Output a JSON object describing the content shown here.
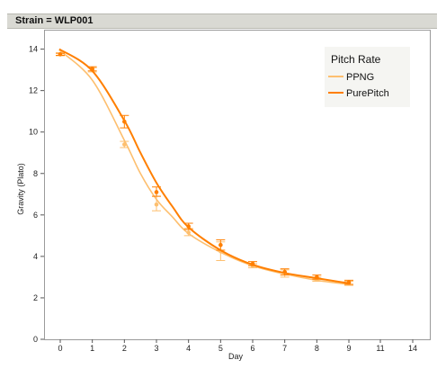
{
  "panel": {
    "strip_label": "Strain = WLP001"
  },
  "chart_data": {
    "type": "line",
    "title": "",
    "xlabel": "Day",
    "ylabel": "Gravity (Plato)",
    "xlim": [
      -0.8,
      14.6
    ],
    "ylim": [
      0,
      14.7
    ],
    "x_ticks": [
      0,
      1,
      2,
      3,
      4,
      5,
      6,
      7,
      8,
      9,
      11,
      14
    ],
    "y_ticks": [
      0,
      2,
      4,
      6,
      8,
      10,
      12,
      14
    ],
    "x_axis_note": "axis is non-linear after day 9 (ticks 11 and 14 evenly spaced)",
    "grid": false,
    "legend": {
      "title": "Pitch Rate",
      "position": "top-right"
    },
    "series": [
      {
        "name": "PPNG",
        "color": "#fdbf6f",
        "points": [
          {
            "x": 0,
            "y": 13.75,
            "lo": 13.68,
            "hi": 13.82
          },
          {
            "x": 1,
            "y": 13.0,
            "lo": 12.9,
            "hi": 13.1
          },
          {
            "x": 2,
            "y": 9.4,
            "lo": 9.25,
            "hi": 9.55
          },
          {
            "x": 3,
            "y": 6.5,
            "lo": 6.2,
            "hi": 6.9
          },
          {
            "x": 4,
            "y": 5.15,
            "lo": 5.0,
            "hi": 5.35
          },
          {
            "x": 5,
            "y": 4.25,
            "lo": 3.8,
            "hi": 4.7
          },
          {
            "x": 6,
            "y": 3.55,
            "lo": 3.45,
            "hi": 3.65
          },
          {
            "x": 7,
            "y": 3.2,
            "lo": 3.0,
            "hi": 3.35
          },
          {
            "x": 8,
            "y": 2.9,
            "lo": 2.8,
            "hi": 3.0
          },
          {
            "x": 9,
            "y": 2.7,
            "lo": 2.6,
            "hi": 2.8
          }
        ],
        "fit": [
          [
            -0.05,
            13.95
          ],
          [
            1,
            12.5
          ],
          [
            2,
            9.6
          ],
          [
            2.5,
            8.0
          ],
          [
            3,
            6.75
          ],
          [
            3.5,
            5.9
          ],
          [
            4,
            5.1
          ],
          [
            5,
            4.2
          ],
          [
            6,
            3.55
          ],
          [
            7,
            3.15
          ],
          [
            8,
            2.85
          ],
          [
            9,
            2.65
          ]
        ]
      },
      {
        "name": "PurePitch",
        "color": "#ff7f00",
        "points": [
          {
            "x": 0,
            "y": 13.75,
            "lo": 13.7,
            "hi": 13.8
          },
          {
            "x": 1,
            "y": 13.05,
            "lo": 12.95,
            "hi": 13.15
          },
          {
            "x": 2,
            "y": 10.5,
            "lo": 10.2,
            "hi": 10.8
          },
          {
            "x": 3,
            "y": 7.1,
            "lo": 6.9,
            "hi": 7.35
          },
          {
            "x": 4,
            "y": 5.45,
            "lo": 5.3,
            "hi": 5.6
          },
          {
            "x": 5,
            "y": 4.55,
            "lo": 4.3,
            "hi": 4.8
          },
          {
            "x": 6,
            "y": 3.65,
            "lo": 3.55,
            "hi": 3.75
          },
          {
            "x": 7,
            "y": 3.25,
            "lo": 3.1,
            "hi": 3.4
          },
          {
            "x": 8,
            "y": 3.0,
            "lo": 2.9,
            "hi": 3.1
          },
          {
            "x": 9,
            "y": 2.75,
            "lo": 2.65,
            "hi": 2.85
          }
        ],
        "fit": [
          [
            -0.05,
            14.0
          ],
          [
            1,
            12.95
          ],
          [
            2,
            10.55
          ],
          [
            2.5,
            9.0
          ],
          [
            3,
            7.55
          ],
          [
            3.5,
            6.4
          ],
          [
            4,
            5.4
          ],
          [
            5,
            4.3
          ],
          [
            6,
            3.6
          ],
          [
            7,
            3.2
          ],
          [
            8,
            2.95
          ],
          [
            9,
            2.7
          ]
        ]
      }
    ]
  }
}
